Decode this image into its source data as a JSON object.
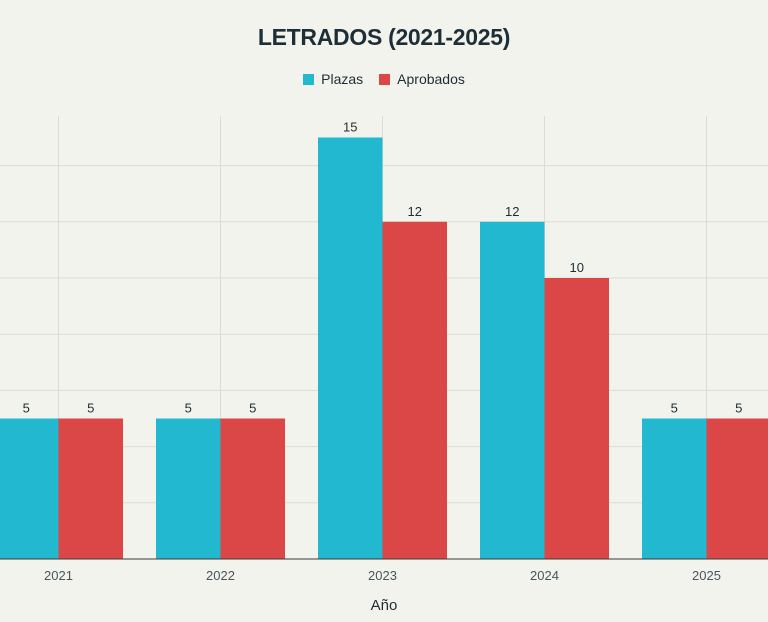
{
  "chart_data": {
    "type": "bar",
    "title": "LETRADOS (2021-2025)",
    "xlabel": "Año",
    "ylabel": "",
    "categories": [
      "2021",
      "2022",
      "2023",
      "2024",
      "2025"
    ],
    "series": [
      {
        "name": "Plazas",
        "color": "#22b8cf",
        "values": [
          5,
          5,
          15,
          12,
          5
        ]
      },
      {
        "name": "Aprobados",
        "color": "#db4646",
        "values": [
          5,
          5,
          12,
          10,
          5
        ]
      }
    ],
    "ylim": [
      0,
      16
    ],
    "grid": true,
    "legend_position": "top-center",
    "data_labels": true
  }
}
